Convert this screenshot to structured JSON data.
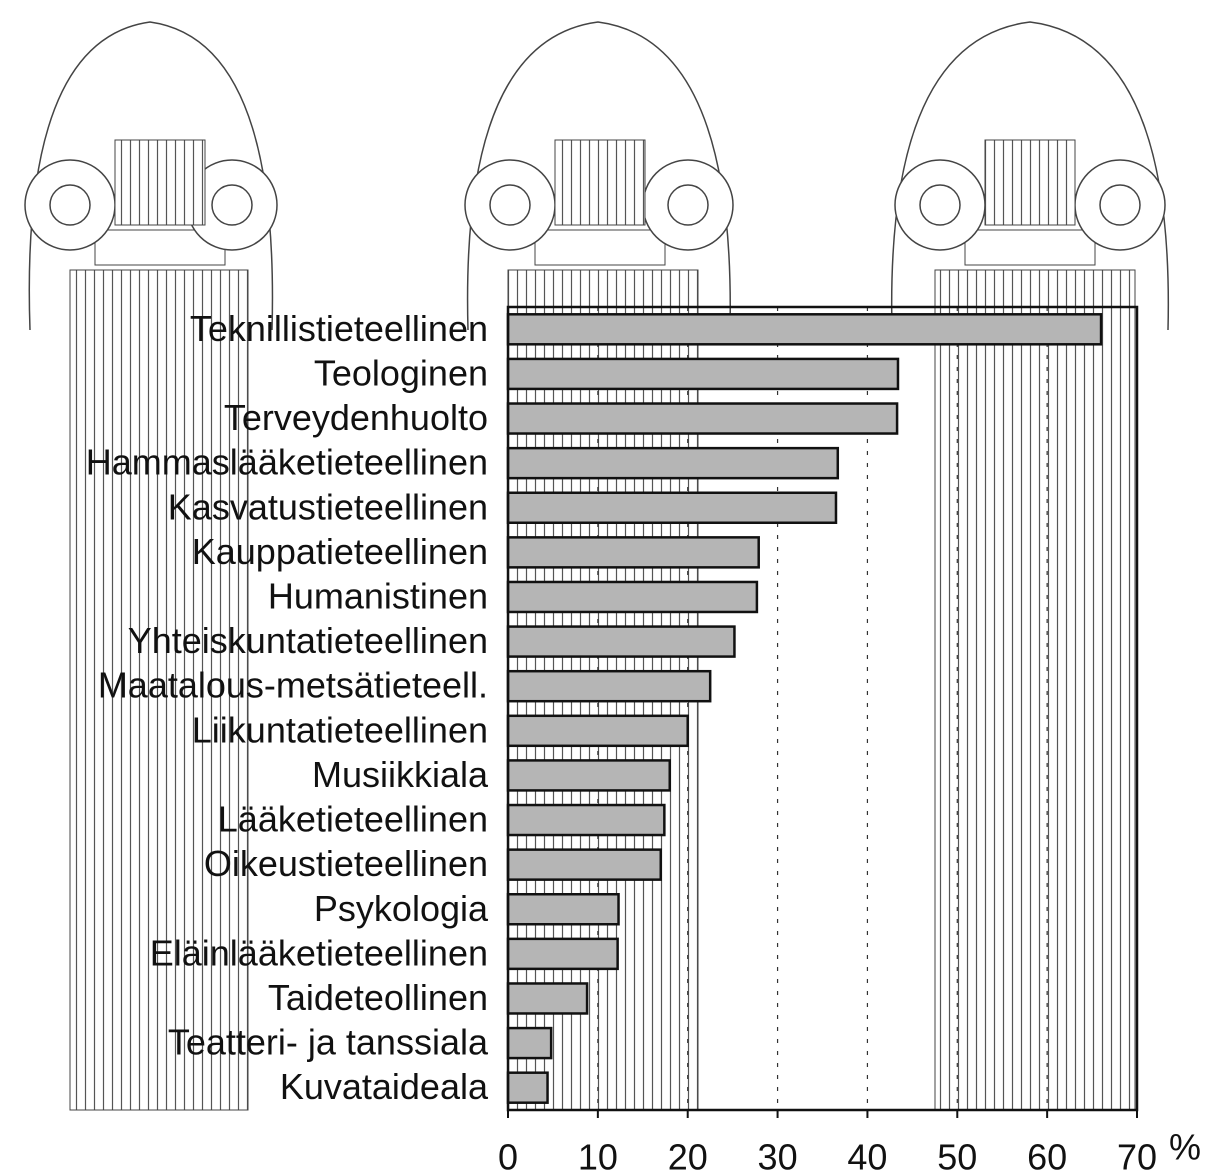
{
  "chart_data": {
    "type": "barh",
    "categories": [
      "Teknillistieteellinen",
      "Teologinen",
      "Terveydenhuolto",
      "Hammaslääketieteellinen",
      "Kasvatustieteellinen",
      "Kauppatieteellinen",
      "Humanistinen",
      "Yhteiskuntatieteellinen",
      "Maatalous-metsätieteell.",
      "Liikuntatieteellinen",
      "Musiikkiala",
      "Lääketieteellinen",
      "Oikeustieteellinen",
      "Psykologia",
      "Eläinlääketieteellinen",
      "Taideteollinen",
      "Teatteri- ja tanssiala",
      "Kuvataideala"
    ],
    "values": [
      66,
      43.4,
      43.3,
      36.7,
      36.5,
      27.9,
      27.7,
      25.2,
      22.5,
      20,
      18,
      17.4,
      17,
      12.3,
      12.2,
      8.8,
      4.8,
      4.4
    ],
    "color": "#b5b5b5",
    "xlim": [
      0,
      70
    ],
    "xticks": [
      0,
      10,
      20,
      30,
      40,
      50,
      60,
      70
    ],
    "xlabel": "%",
    "grid": true
  }
}
